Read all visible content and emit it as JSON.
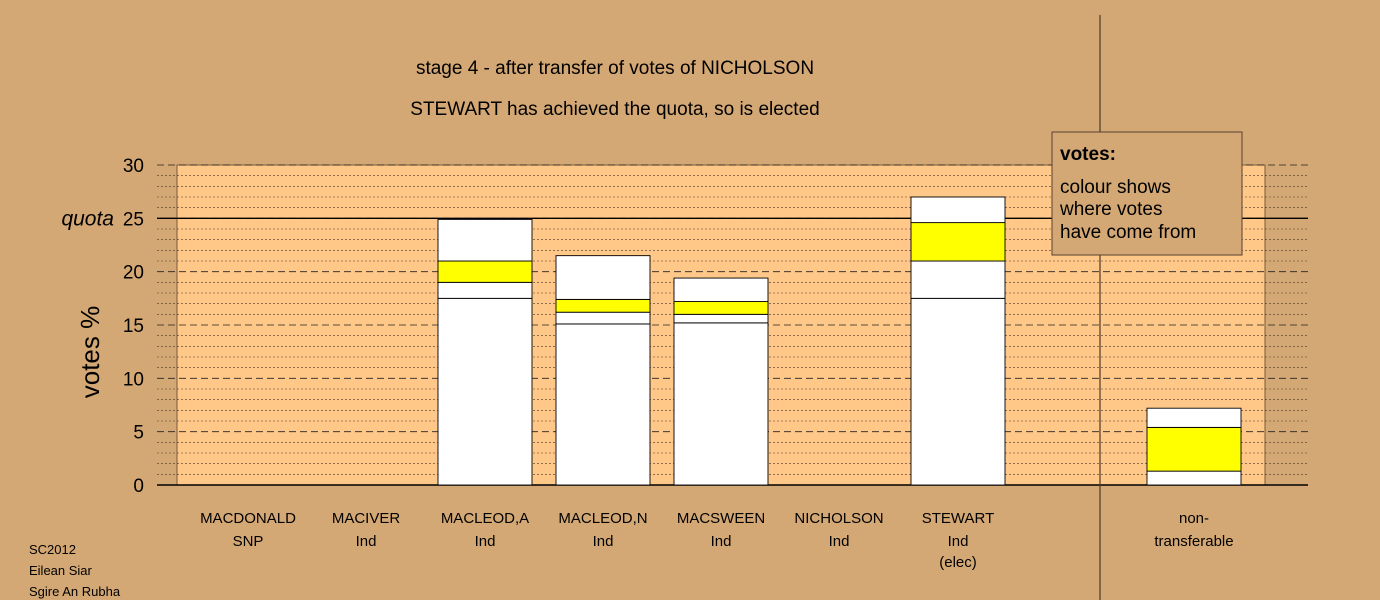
{
  "chart_data": {
    "type": "bar",
    "stacked": true,
    "title": "stage 4 - after transfer of votes of NICHOLSON",
    "subtitle": "STEWART has achieved the quota, so is elected",
    "ylabel": "votes %",
    "ylim": [
      0,
      30
    ],
    "yticks": [
      0,
      5,
      10,
      15,
      20,
      25,
      30
    ],
    "quota": 25,
    "quota_label": "quota",
    "grid": true,
    "categories": [
      {
        "name": "MACDONALD",
        "party": "SNP",
        "note": "",
        "segments": []
      },
      {
        "name": "MACIVER",
        "party": "Ind",
        "note": "",
        "segments": []
      },
      {
        "name": "MACLEOD,A",
        "party": "Ind",
        "note": "",
        "segments": [
          {
            "value": 17.5,
            "color": "#ffffff"
          },
          {
            "value": 1.5,
            "color": "#ffffff"
          },
          {
            "value": 2.0,
            "color": "#ffff00"
          },
          {
            "value": 3.9,
            "color": "#ffffff"
          }
        ]
      },
      {
        "name": "MACLEOD,N",
        "party": "Ind",
        "note": "",
        "segments": [
          {
            "value": 15.1,
            "color": "#ffffff"
          },
          {
            "value": 1.1,
            "color": "#ffffff"
          },
          {
            "value": 1.2,
            "color": "#ffff00"
          },
          {
            "value": 4.1,
            "color": "#ffffff"
          }
        ]
      },
      {
        "name": "MACSWEEN",
        "party": "Ind",
        "note": "",
        "segments": [
          {
            "value": 15.2,
            "color": "#ffffff"
          },
          {
            "value": 0.8,
            "color": "#ffffff"
          },
          {
            "value": 1.2,
            "color": "#ffff00"
          },
          {
            "value": 2.2,
            "color": "#ffffff"
          }
        ]
      },
      {
        "name": "NICHOLSON",
        "party": "Ind",
        "note": "",
        "segments": []
      },
      {
        "name": "STEWART",
        "party": "Ind",
        "note": "(elec)",
        "segments": [
          {
            "value": 17.5,
            "color": "#ffffff"
          },
          {
            "value": 3.5,
            "color": "#ffffff"
          },
          {
            "value": 3.6,
            "color": "#ffff00"
          },
          {
            "value": 2.4,
            "color": "#ffffff"
          }
        ]
      },
      {
        "name": "non-",
        "party": "transferable",
        "note": "",
        "segments": [
          {
            "value": 1.3,
            "color": "#ffffff"
          },
          {
            "value": 4.1,
            "color": "#ffff00"
          },
          {
            "value": 1.8,
            "color": "#ffffff"
          }
        ]
      }
    ]
  },
  "legend": {
    "heading": "votes:",
    "line1": "colour shows",
    "line2": "where votes",
    "line3": "have come from",
    "placement": "top-right"
  },
  "footer": {
    "line1": "SC2012",
    "line2": "Eilean Siar",
    "line3": "Sgire An Rubha"
  },
  "colors": {
    "background": "#d4a875",
    "plot_area": "#ffc888",
    "transfer": "#ffff00",
    "original": "#ffffff"
  }
}
